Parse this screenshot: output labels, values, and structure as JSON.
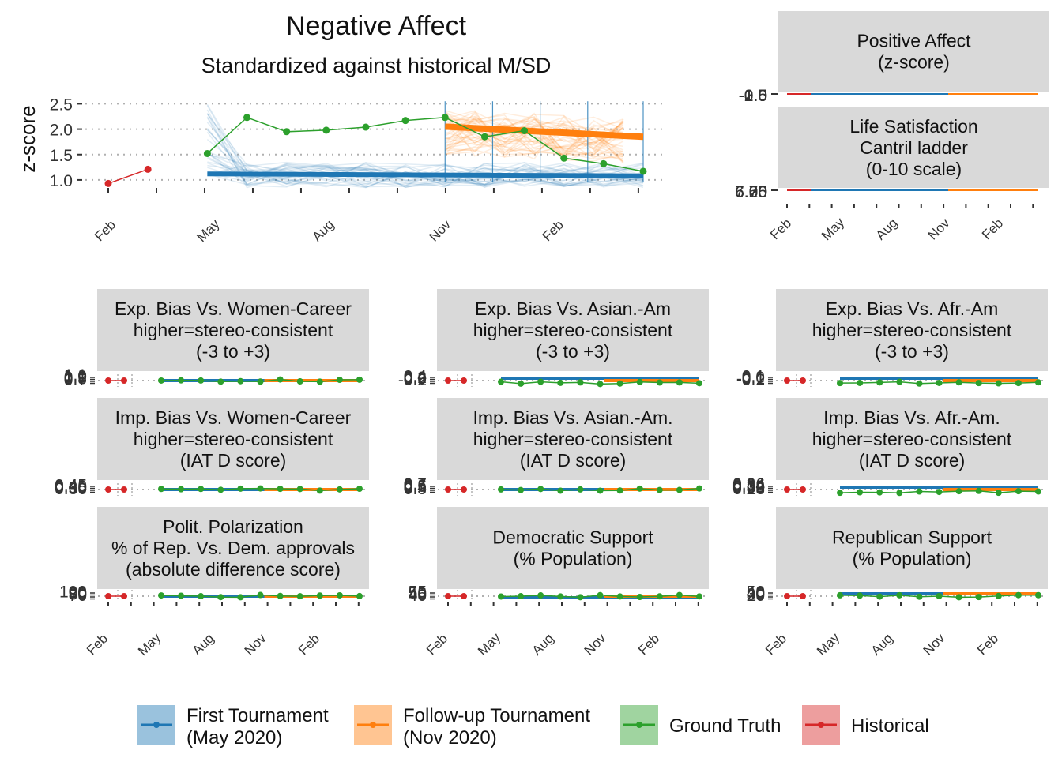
{
  "colors": {
    "first": "#1f77b4",
    "followup": "#ff7f0e",
    "truth": "#2ca02c",
    "historical": "#d62728",
    "strip": "#d9d9d9",
    "grid": "#b0b0b0"
  },
  "chart_data": [
    {
      "type": "line",
      "title": "Negative Affect",
      "subtitle": "Standardized against historical M/SD",
      "ylabel": "z-score",
      "yticks": [
        "1.0",
        "1.5",
        "2.0",
        "2.5"
      ],
      "xticks": [
        "Feb",
        "May",
        "Aug",
        "Nov",
        "Feb"
      ],
      "ylim": [
        0.75,
        2.6
      ],
      "xlim": [
        0,
        27
      ],
      "series": [
        {
          "name": "Historical",
          "x": [
            0,
            2
          ],
          "y": [
            0.93,
            1.21
          ]
        },
        {
          "name": "Ground Truth",
          "x": [
            5,
            7,
            9,
            11,
            13,
            15,
            17,
            19,
            21,
            23,
            25,
            27
          ],
          "y": [
            1.52,
            2.23,
            1.95,
            1.98,
            2.04,
            2.17,
            2.23,
            1.85,
            1.97,
            1.43,
            1.32,
            1.17
          ]
        },
        {
          "name": "First Tournament (May 2020)",
          "x": [
            5,
            27
          ],
          "y": [
            1.12,
            1.08
          ]
        },
        {
          "name": "Follow-up Tournament (Nov 2020)",
          "x": [
            17,
            27
          ],
          "y": [
            2.05,
            1.85
          ]
        }
      ]
    },
    {
      "type": "line",
      "title": "Positive Affect\n(z-score)",
      "yticks": [
        "-2.0",
        "-1.5",
        "-1.0",
        "-0.5",
        "0.0"
      ],
      "xticks": [
        "Feb",
        "May",
        "Aug",
        "Nov",
        "Feb"
      ]
    },
    {
      "type": "line",
      "title": "Life Satisfaction\nCantril ladder\n(0-10 scale)",
      "yticks": [
        "6.00",
        "6.25",
        "6.50",
        "6.75",
        "7.00"
      ],
      "xticks": [
        "Feb",
        "May",
        "Aug",
        "Nov",
        "Feb"
      ]
    },
    {
      "type": "line",
      "title": "Exp. Bias Vs. Women-Career\nhigher=stereo-consistent\n(-3 to +3)",
      "yticks": [
        "0.7",
        "0.8",
        "0.9",
        "1.0",
        "1.1"
      ],
      "values_level": "flat"
    },
    {
      "type": "line",
      "title": "Exp. Bias Vs. Asian.-Am\nhigher=stereo-consistent\n(-3 to +3)",
      "yticks": [
        "-0.2",
        "0.0",
        "0.2",
        "0.4"
      ],
      "values_level": "flat"
    },
    {
      "type": "line",
      "title": "Exp. Bias Vs. Afr.-Am\nhigher=stereo-consistent\n(-3 to +3)",
      "yticks": [
        "-0.2",
        "-0.1",
        "0.0",
        "0.1"
      ],
      "values_level": "flat"
    },
    {
      "type": "line",
      "title": "Imp. Bias Vs. Women-Career\nhigher=stereo-consistent\n(IAT D score)",
      "yticks": [
        "0.30",
        "0.35",
        "0.40",
        "0.45"
      ],
      "values_level": "flat"
    },
    {
      "type": "line",
      "title": "Imp. Bias Vs. Asian.-Am.\nhigher=stereo-consistent\n(IAT D score)",
      "yticks": [
        "0.3",
        "0.4",
        "0.5",
        "0.6",
        "0.7"
      ],
      "values_level": "flat"
    },
    {
      "type": "line",
      "title": "Imp. Bias Vs. Afr.-Am.\nhigher=stereo-consistent\n(IAT D score)",
      "yticks": [
        "0.28",
        "0.30",
        "0.32",
        "0.34",
        "0.36"
      ],
      "values_level": "flat"
    },
    {
      "type": "line",
      "title": "Polit. Polarization\n% of Rep. Vs. Dem. approvals\n(absolute difference score)",
      "yticks": [
        "70",
        "80",
        "90",
        "100"
      ],
      "values_level": "flat"
    },
    {
      "type": "line",
      "title": "Democratic Support\n(% Population)",
      "yticks": [
        "40",
        "45",
        "50",
        "55"
      ],
      "values_level": "flat"
    },
    {
      "type": "line",
      "title": "Republican Support\n(% Population)",
      "yticks": [
        "20",
        "30",
        "40",
        "50"
      ],
      "values_level": "flat"
    }
  ],
  "legend": {
    "position": "bottom",
    "items": [
      {
        "label": "First Tournament\n(May 2020)",
        "key": "first"
      },
      {
        "label": "Follow-up Tournament\n(Nov 2020)",
        "key": "followup"
      },
      {
        "label": "Ground Truth",
        "key": "truth"
      },
      {
        "label": "Historical",
        "key": "historical"
      }
    ]
  }
}
